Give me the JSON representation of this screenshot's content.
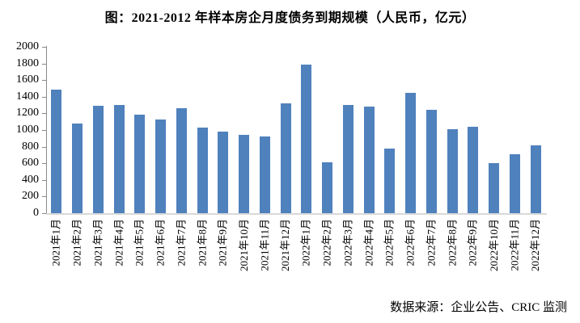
{
  "colors": {
    "bar": "#4F81BD",
    "axis": "#898989",
    "baseline": "#D9D9D9",
    "text": "#000000"
  },
  "source": "数据来源：企业公告、CRIC 监测",
  "chart_data": {
    "type": "bar",
    "title": "图：2021-2012 年样本房企月度债务到期规模（人民币，亿元）",
    "categories": [
      "2021年1月",
      "2021年2月",
      "2021年3月",
      "2021年4月",
      "2021年5月",
      "2021年6月",
      "2021年7月",
      "2021年8月",
      "2021年9月",
      "2021年10月",
      "2021年11月",
      "2021年12月",
      "2022年1月",
      "2022年2月",
      "2022年3月",
      "2022年4月",
      "2022年5月",
      "2022年6月",
      "2022年7月",
      "2022年8月",
      "2022年9月",
      "2022年10月",
      "2022年11月",
      "2022年12月"
    ],
    "values": [
      1490,
      1080,
      1290,
      1300,
      1180,
      1130,
      1260,
      1025,
      980,
      945,
      925,
      1320,
      1790,
      615,
      1305,
      1280,
      780,
      1450,
      1240,
      1010,
      1035,
      605,
      710,
      820
    ],
    "ylim": [
      0,
      2000
    ],
    "ytick_step": 200,
    "grid": false,
    "legend": false,
    "x_labels_rotated_degrees": 90,
    "source": "数据来源：企业公告、CRIC 监测"
  }
}
